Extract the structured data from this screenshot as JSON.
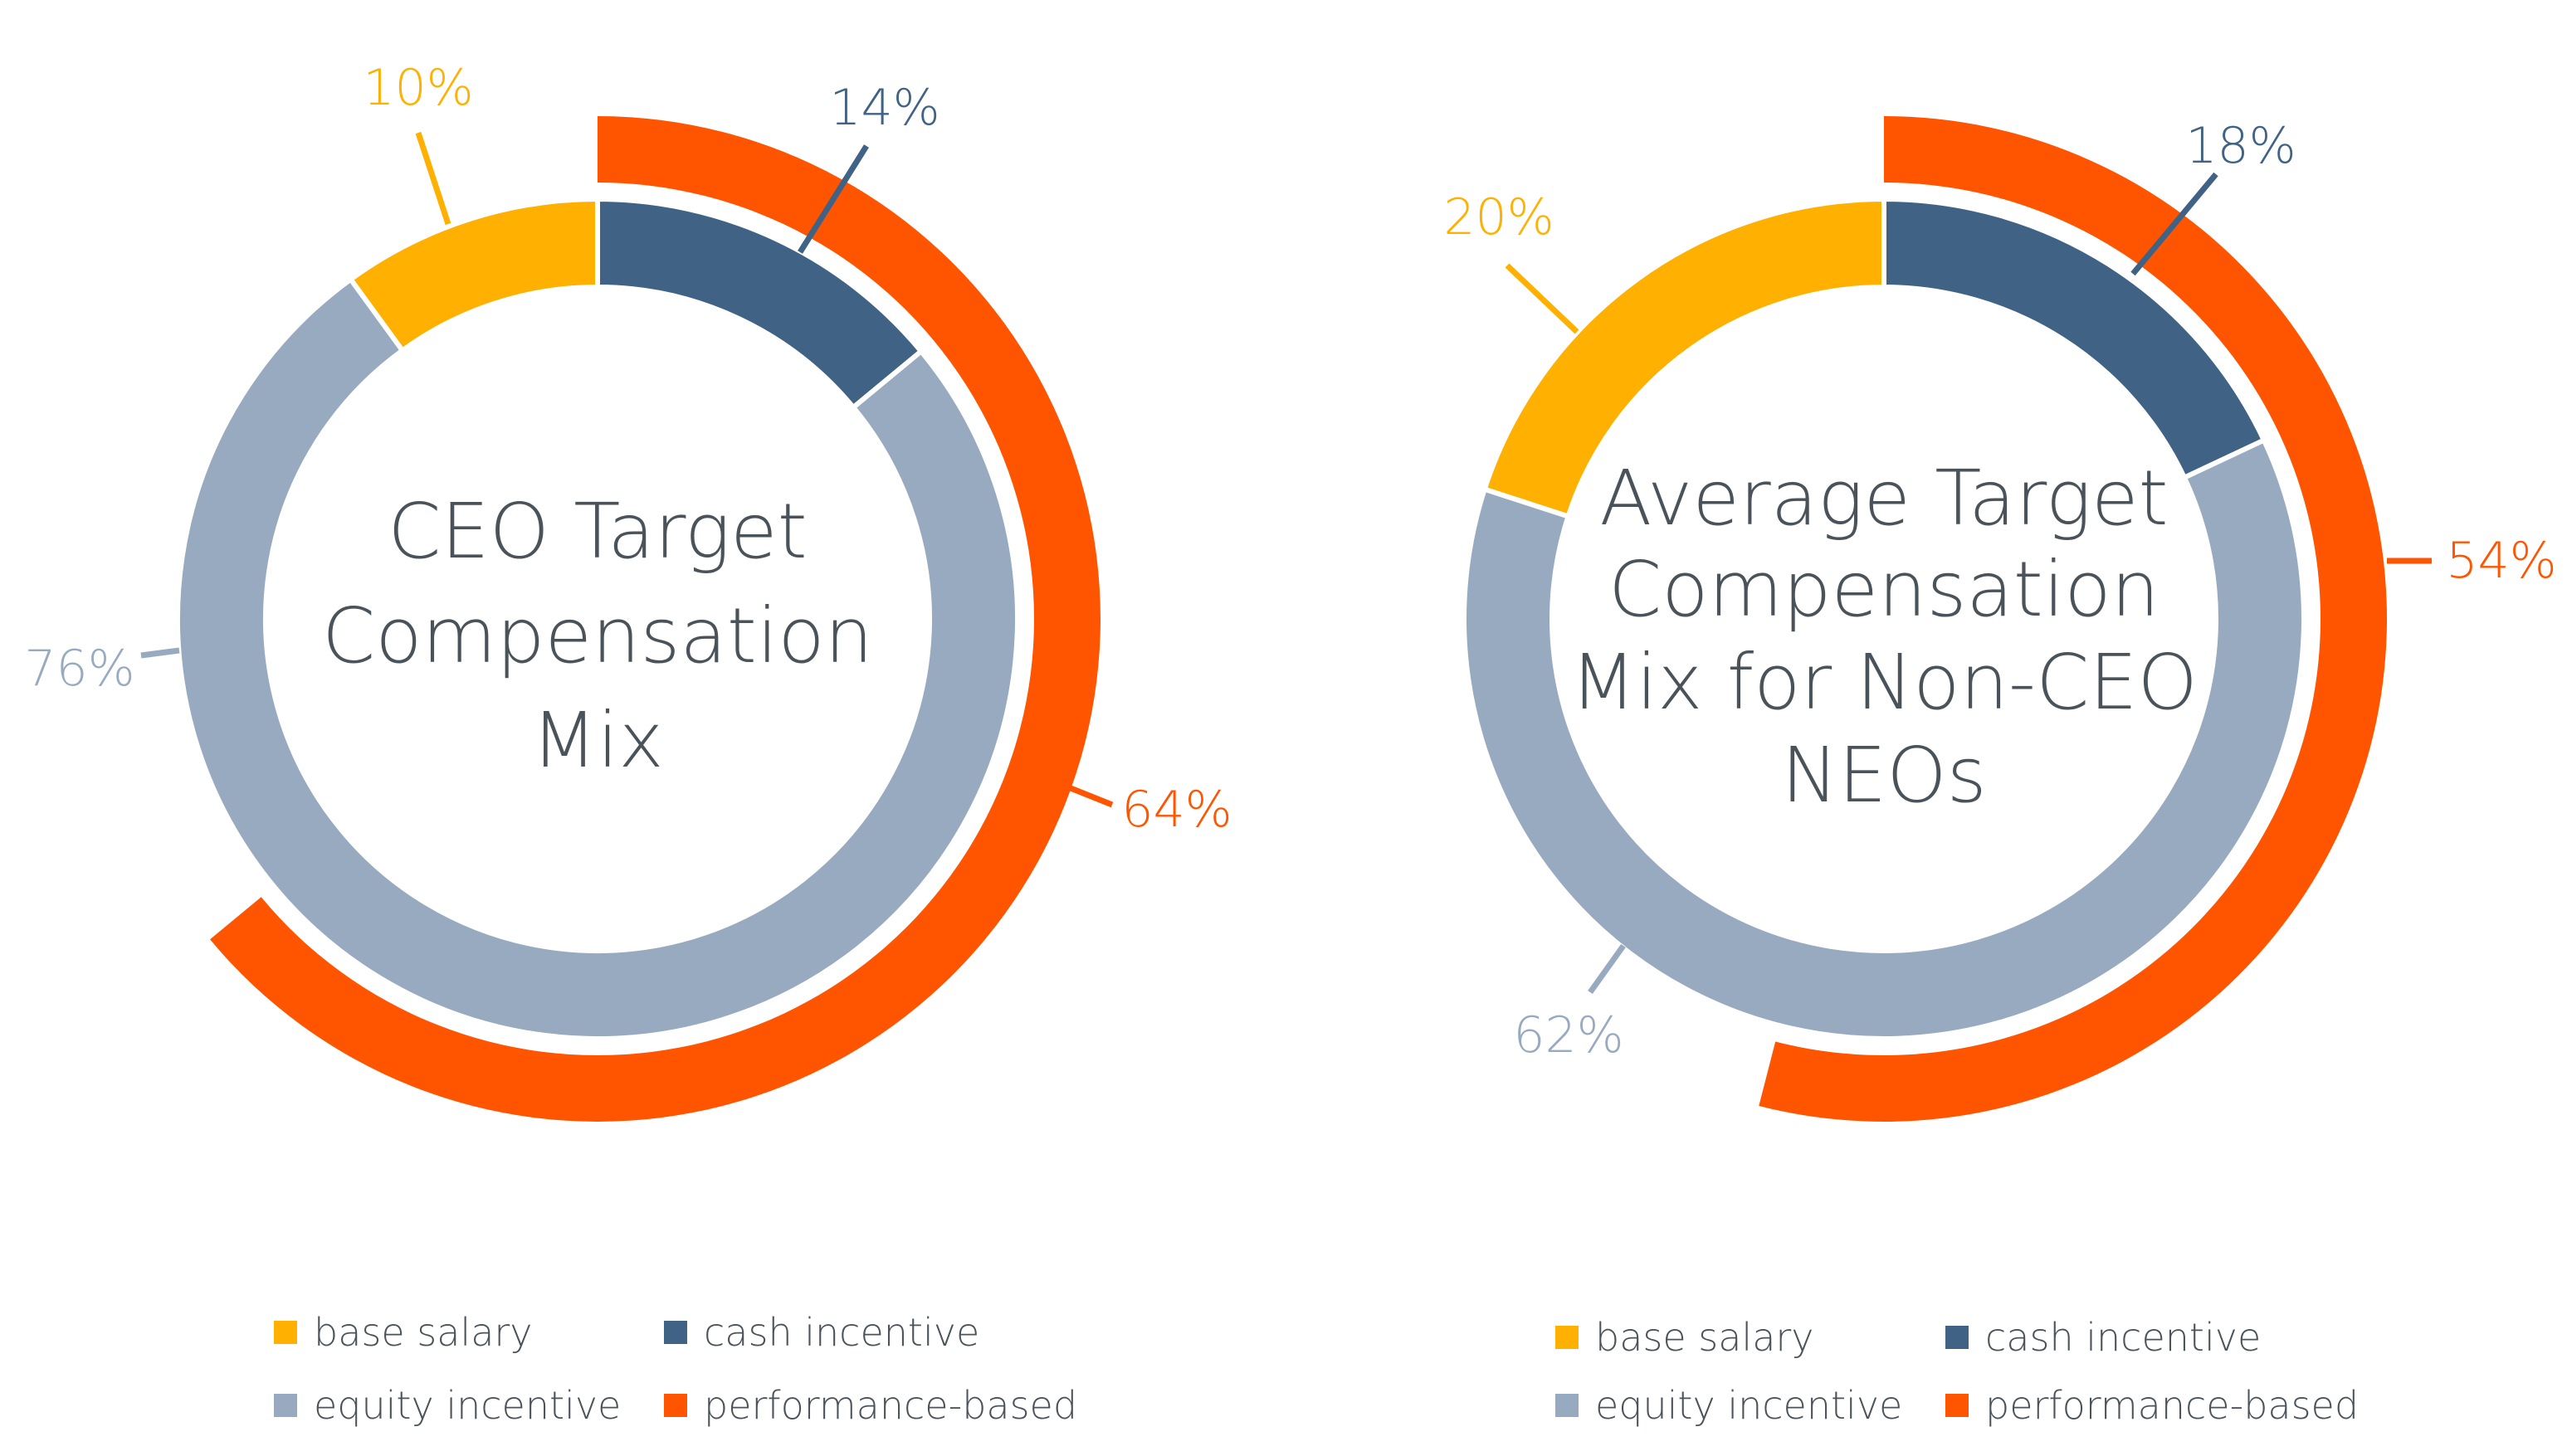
{
  "colors": {
    "base_salary": "#FFB000",
    "cash_incentive": "#3F6285",
    "equity_incentive": "#98AABF",
    "performance_based": "#FF5500",
    "text": "#4A525A"
  },
  "chart_data": [
    {
      "type": "pie",
      "title_lines": [
        "CEO Target",
        "Compensation",
        "Mix"
      ],
      "inner_ring": {
        "categories": [
          "cash incentive",
          "equity incentive",
          "base salary"
        ],
        "values": [
          14,
          76,
          10
        ],
        "labels": [
          "14%",
          "76%",
          "10%"
        ]
      },
      "outer_arc": {
        "name": "performance-based",
        "value": 64,
        "label": "64%"
      },
      "legend": [
        "base salary",
        "cash incentive",
        "equity incentive",
        "performance-based"
      ],
      "legend_placement": "bottom"
    },
    {
      "type": "pie",
      "title_lines": [
        "Average Target",
        "Compensation",
        "Mix for Non-CEO",
        "NEOs"
      ],
      "inner_ring": {
        "categories": [
          "cash incentive",
          "equity incentive",
          "base salary"
        ],
        "values": [
          18,
          62,
          20
        ],
        "labels": [
          "18%",
          "62%",
          "20%"
        ]
      },
      "outer_arc": {
        "name": "performance-based",
        "value": 54,
        "label": "54%"
      },
      "legend": [
        "base salary",
        "cash incentive",
        "equity incentive",
        "performance-based"
      ],
      "legend_placement": "bottom"
    }
  ]
}
